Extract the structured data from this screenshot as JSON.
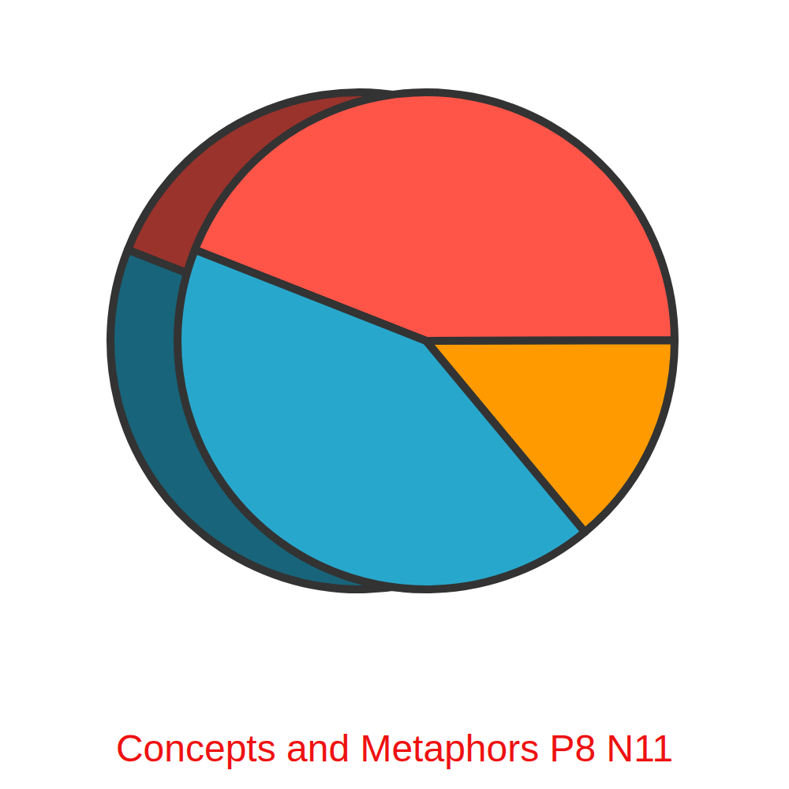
{
  "chart_data": {
    "type": "pie",
    "title": "Concepts and Metaphors P8 N11",
    "values": [
      44,
      14,
      42
    ],
    "colors": [
      "#ff5549",
      "#ff9b00",
      "#28a7cc"
    ],
    "data_labels": false
  }
}
